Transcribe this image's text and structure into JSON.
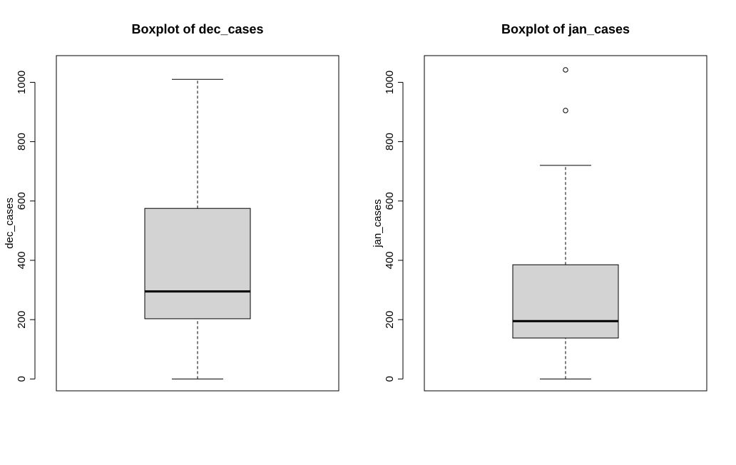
{
  "chart_data": [
    {
      "type": "boxplot",
      "title": "Boxplot of dec_cases",
      "xlabel": "",
      "ylabel": "dec_cases",
      "ylim": [
        -40,
        1090
      ],
      "yticks": [
        0,
        200,
        400,
        600,
        800,
        1000
      ],
      "box_fill": "#d3d3d3",
      "grid": false,
      "stats": {
        "min": 0,
        "q1": 203,
        "median": 295,
        "q3": 575,
        "max": 1010
      },
      "outliers": []
    },
    {
      "type": "boxplot",
      "title": "Boxplot of jan_cases",
      "xlabel": "",
      "ylabel": "jan_cases",
      "ylim": [
        -40,
        1090
      ],
      "yticks": [
        0,
        200,
        400,
        600,
        800,
        1000
      ],
      "box_fill": "#d3d3d3",
      "grid": false,
      "stats": {
        "min": 0,
        "q1": 138,
        "median": 195,
        "q3": 385,
        "max": 720
      },
      "outliers": [
        905,
        1042
      ]
    }
  ]
}
